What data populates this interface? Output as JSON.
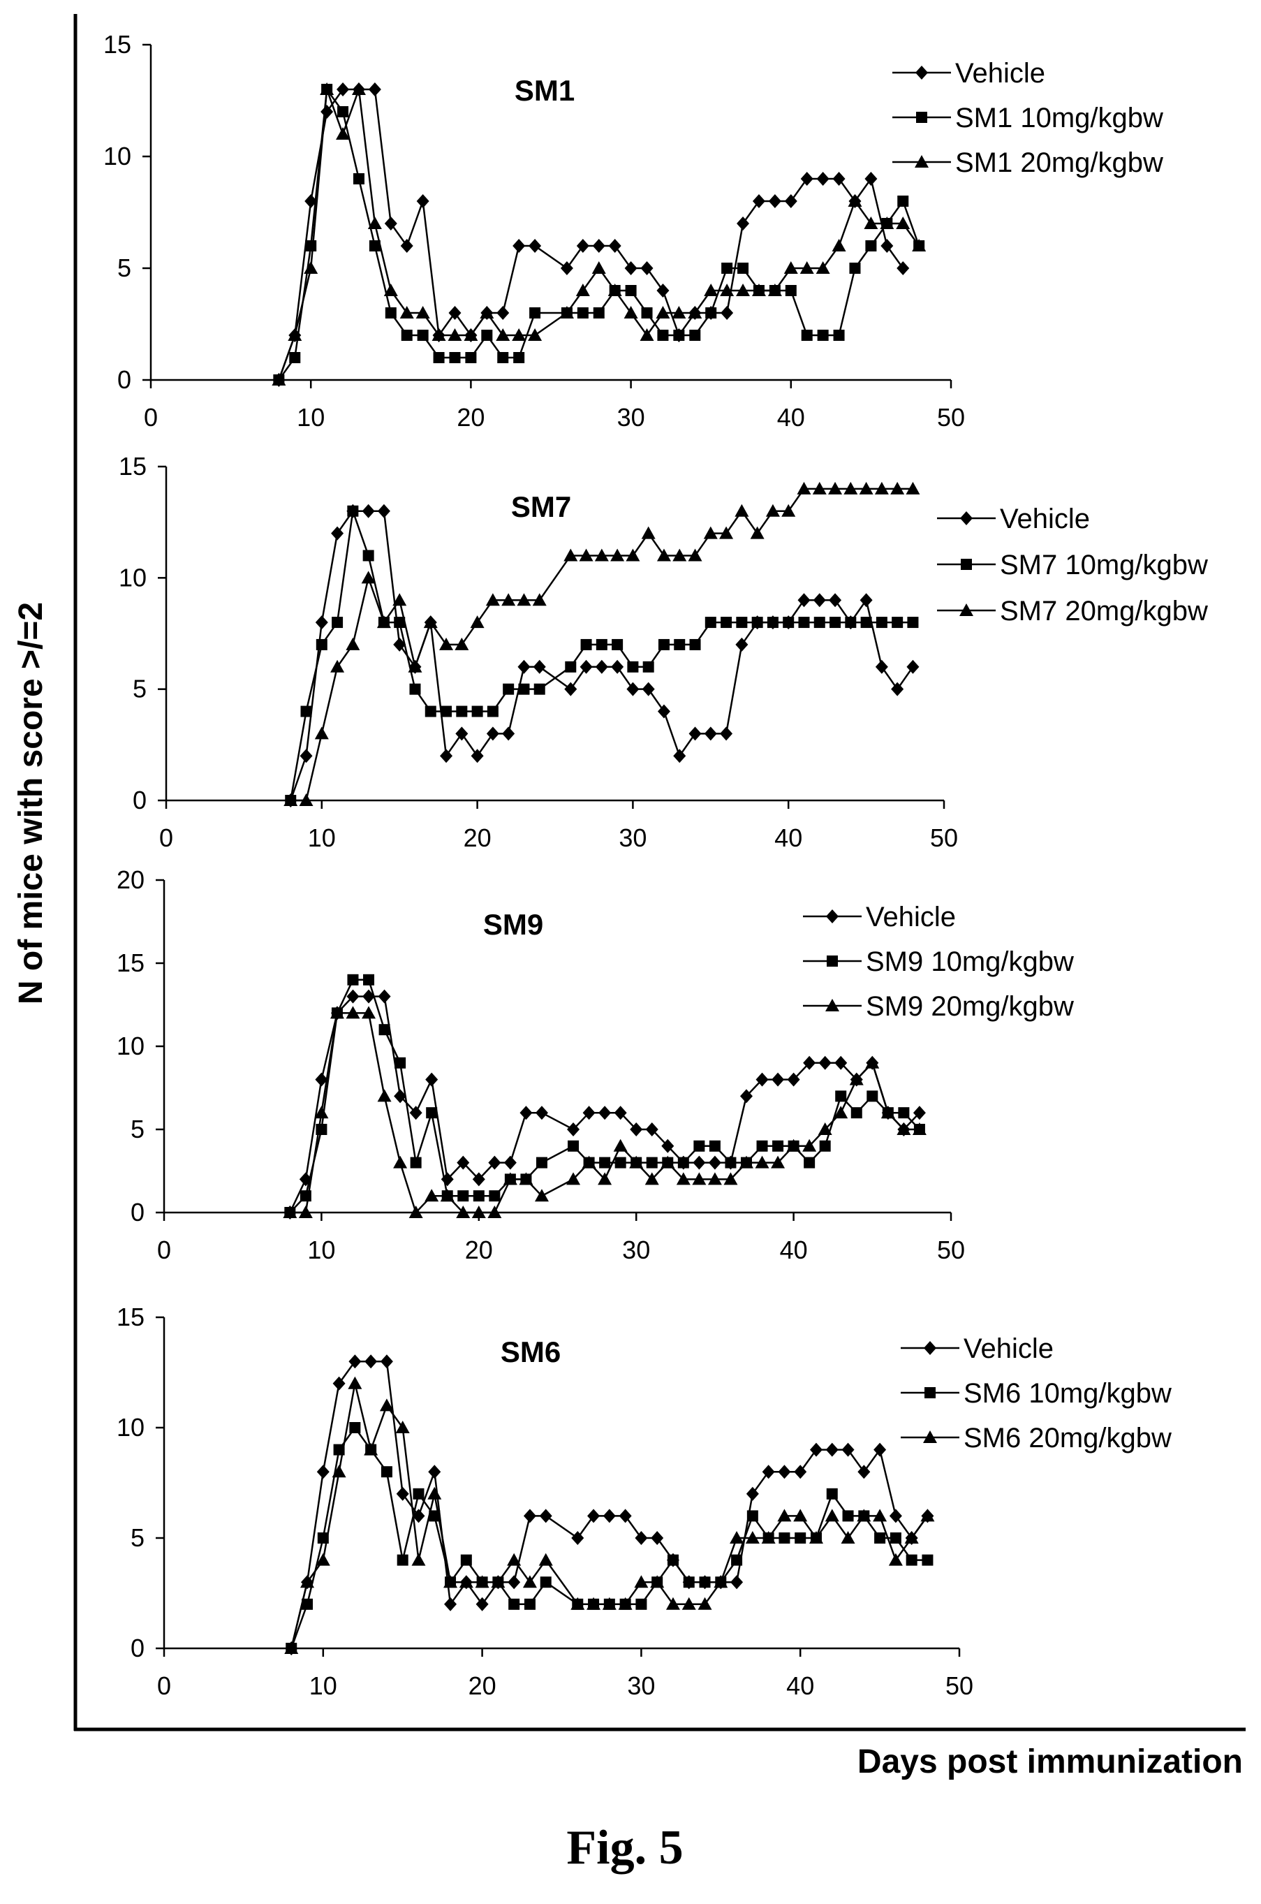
{
  "figure": {
    "ylabel": "N of mice with score >/=2",
    "xlabel": "Days post immunization",
    "caption": "Fig. 5"
  },
  "chart_data": [
    {
      "type": "line",
      "title": "SM1",
      "xlim": [
        0,
        50
      ],
      "ylim": [
        0,
        15
      ],
      "xticks": [
        0,
        10,
        20,
        30,
        40,
        50
      ],
      "yticks": [
        0,
        5,
        10,
        15
      ],
      "legend_position": "top-right",
      "x": [
        8,
        9,
        10,
        11,
        12,
        13,
        14,
        15,
        16,
        17,
        18,
        19,
        20,
        21,
        22,
        23,
        24,
        25,
        26,
        27,
        28,
        29,
        30,
        31,
        32,
        33,
        34,
        35,
        36,
        37,
        38,
        39,
        40,
        41,
        42,
        43,
        44,
        45,
        46,
        47,
        48
      ],
      "series": [
        {
          "name": "Vehicle",
          "marker": "diamond",
          "values": [
            0,
            2,
            8,
            12,
            13,
            13,
            13,
            7,
            6,
            8,
            2,
            3,
            2,
            3,
            3,
            6,
            6,
            null,
            5,
            6,
            6,
            6,
            5,
            5,
            4,
            2,
            3,
            3,
            3,
            7,
            8,
            8,
            8,
            9,
            9,
            9,
            8,
            9,
            6,
            5,
            null
          ]
        },
        {
          "name": "SM1 10mg/kgbw",
          "marker": "square",
          "values": [
            0,
            1,
            6,
            13,
            12,
            9,
            6,
            3,
            2,
            2,
            1,
            1,
            1,
            2,
            1,
            1,
            3,
            null,
            3,
            3,
            3,
            4,
            4,
            3,
            2,
            2,
            2,
            3,
            5,
            5,
            4,
            4,
            4,
            2,
            2,
            2,
            5,
            6,
            7,
            8,
            6
          ]
        },
        {
          "name": "SM1 20mg/kgbw",
          "marker": "triangle",
          "values": [
            0,
            2,
            5,
            13,
            11,
            13,
            7,
            4,
            3,
            3,
            2,
            2,
            2,
            3,
            2,
            2,
            2,
            null,
            3,
            4,
            5,
            4,
            3,
            2,
            3,
            3,
            3,
            4,
            4,
            4,
            4,
            4,
            5,
            5,
            5,
            6,
            8,
            7,
            7,
            7,
            6
          ]
        }
      ]
    },
    {
      "type": "line",
      "title": "SM7",
      "xlim": [
        0,
        50
      ],
      "ylim": [
        0,
        15
      ],
      "xticks": [
        0,
        10,
        20,
        30,
        40,
        50
      ],
      "yticks": [
        0,
        5,
        10,
        15
      ],
      "legend_position": "right",
      "x": [
        8,
        9,
        10,
        11,
        12,
        13,
        14,
        15,
        16,
        17,
        18,
        19,
        20,
        21,
        22,
        23,
        24,
        25,
        26,
        27,
        28,
        29,
        30,
        31,
        32,
        33,
        34,
        35,
        36,
        37,
        38,
        39,
        40,
        41,
        42,
        43,
        44,
        45,
        46,
        47,
        48
      ],
      "series": [
        {
          "name": "Vehicle",
          "marker": "diamond",
          "values": [
            0,
            2,
            8,
            12,
            13,
            13,
            13,
            7,
            6,
            8,
            2,
            3,
            2,
            3,
            3,
            6,
            6,
            null,
            5,
            6,
            6,
            6,
            5,
            5,
            4,
            2,
            3,
            3,
            3,
            7,
            8,
            8,
            8,
            9,
            9,
            9,
            8,
            9,
            6,
            5,
            6
          ]
        },
        {
          "name": "SM7 10mg/kgbw",
          "marker": "square",
          "values": [
            0,
            4,
            7,
            8,
            13,
            11,
            8,
            8,
            5,
            4,
            4,
            4,
            4,
            4,
            5,
            5,
            5,
            null,
            6,
            7,
            7,
            7,
            6,
            6,
            7,
            7,
            7,
            8,
            8,
            8,
            8,
            8,
            8,
            8,
            8,
            8,
            8,
            8,
            8,
            8,
            8
          ]
        },
        {
          "name": "SM7 20mg/kgbw",
          "marker": "triangle",
          "values": [
            0,
            0,
            3,
            6,
            7,
            10,
            8,
            9,
            6,
            8,
            7,
            7,
            8,
            9,
            9,
            9,
            9,
            null,
            11,
            11,
            11,
            11,
            11,
            12,
            11,
            11,
            11,
            12,
            12,
            13,
            12,
            13,
            13,
            14,
            14,
            14,
            14,
            14,
            14,
            14,
            14
          ]
        }
      ]
    },
    {
      "type": "line",
      "title": "SM9",
      "xlim": [
        0,
        50
      ],
      "ylim": [
        0,
        20
      ],
      "xticks": [
        0,
        10,
        20,
        30,
        40,
        50
      ],
      "yticks": [
        0,
        5,
        10,
        15,
        20
      ],
      "legend_position": "right",
      "x": [
        8,
        9,
        10,
        11,
        12,
        13,
        14,
        15,
        16,
        17,
        18,
        19,
        20,
        21,
        22,
        23,
        24,
        25,
        26,
        27,
        28,
        29,
        30,
        31,
        32,
        33,
        34,
        35,
        36,
        37,
        38,
        39,
        40,
        41,
        42,
        43,
        44,
        45,
        46,
        47,
        48
      ],
      "series": [
        {
          "name": "Vehicle",
          "marker": "diamond",
          "values": [
            0,
            2,
            8,
            12,
            13,
            13,
            13,
            7,
            6,
            8,
            2,
            3,
            2,
            3,
            3,
            6,
            6,
            null,
            5,
            6,
            6,
            6,
            5,
            5,
            4,
            3,
            3,
            3,
            3,
            7,
            8,
            8,
            8,
            9,
            9,
            9,
            8,
            9,
            6,
            5,
            6
          ]
        },
        {
          "name": "SM9 10mg/kgbw",
          "marker": "square",
          "values": [
            0,
            1,
            5,
            12,
            14,
            14,
            11,
            9,
            3,
            6,
            1,
            1,
            1,
            1,
            2,
            2,
            3,
            null,
            4,
            3,
            3,
            3,
            3,
            3,
            3,
            3,
            4,
            4,
            3,
            3,
            4,
            4,
            4,
            3,
            4,
            7,
            6,
            7,
            6,
            6,
            5
          ]
        },
        {
          "name": "SM9 20mg/kgbw",
          "marker": "triangle",
          "values": [
            0,
            0,
            6,
            12,
            12,
            12,
            7,
            3,
            0,
            1,
            1,
            0,
            0,
            0,
            2,
            2,
            1,
            null,
            2,
            3,
            2,
            4,
            3,
            2,
            3,
            2,
            2,
            2,
            2,
            3,
            3,
            3,
            4,
            4,
            5,
            6,
            8,
            9,
            6,
            5,
            5
          ]
        }
      ]
    },
    {
      "type": "line",
      "title": "SM6",
      "xlim": [
        0,
        50
      ],
      "ylim": [
        0,
        15
      ],
      "xticks": [
        0,
        10,
        20,
        30,
        40,
        50
      ],
      "yticks": [
        0,
        5,
        10,
        15
      ],
      "legend_position": "right",
      "x": [
        8,
        9,
        10,
        11,
        12,
        13,
        14,
        15,
        16,
        17,
        18,
        19,
        20,
        21,
        22,
        23,
        24,
        25,
        26,
        27,
        28,
        29,
        30,
        31,
        32,
        33,
        34,
        35,
        36,
        37,
        38,
        39,
        40,
        41,
        42,
        43,
        44,
        45,
        46,
        47,
        48
      ],
      "series": [
        {
          "name": "Vehicle",
          "marker": "diamond",
          "values": [
            0,
            3,
            8,
            12,
            13,
            13,
            13,
            7,
            6,
            8,
            2,
            3,
            2,
            3,
            3,
            6,
            6,
            null,
            5,
            6,
            6,
            6,
            5,
            5,
            4,
            3,
            3,
            3,
            3,
            7,
            8,
            8,
            8,
            9,
            9,
            9,
            8,
            9,
            6,
            5,
            6
          ]
        },
        {
          "name": "SM6 10mg/kgbw",
          "marker": "square",
          "values": [
            0,
            2,
            5,
            9,
            10,
            9,
            8,
            4,
            7,
            6,
            3,
            4,
            3,
            3,
            2,
            2,
            3,
            null,
            2,
            2,
            2,
            2,
            2,
            3,
            4,
            3,
            3,
            3,
            4,
            6,
            5,
            5,
            5,
            5,
            7,
            6,
            6,
            5,
            5,
            4,
            4
          ]
        },
        {
          "name": "SM6 20mg/kgbw",
          "marker": "triangle",
          "values": [
            0,
            3,
            4,
            8,
            12,
            9,
            11,
            10,
            4,
            7,
            3,
            3,
            3,
            3,
            4,
            3,
            4,
            null,
            2,
            2,
            2,
            2,
            3,
            3,
            2,
            2,
            2,
            3,
            5,
            5,
            5,
            6,
            6,
            5,
            6,
            5,
            6,
            6,
            4,
            5,
            6
          ]
        }
      ]
    }
  ]
}
